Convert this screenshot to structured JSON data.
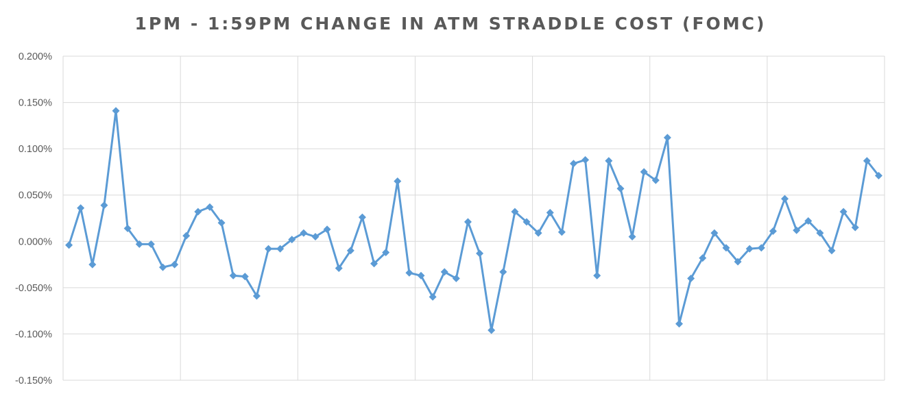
{
  "chart_data": {
    "type": "line",
    "title": "1PM - 1:59PM CHANGE IN ATM STRADDLE COST (FOMC)",
    "xlabel": "",
    "ylabel": "",
    "ylim": [
      -0.15,
      0.2
    ],
    "y_unit": "%",
    "y_ticks": [
      "0.200%",
      "0.150%",
      "0.100%",
      "0.050%",
      "0.000%",
      "-0.050%",
      "-0.100%",
      "-0.150%"
    ],
    "y_tick_values": [
      0.2,
      0.15,
      0.1,
      0.05,
      0.0,
      -0.05,
      -0.1,
      -0.15
    ],
    "x_count": 70,
    "x_gridline_every": 10,
    "grid": true,
    "legend": "none",
    "series": [
      {
        "color": "#5b9bd5",
        "marker": "diamond",
        "values": [
          -0.004,
          0.036,
          -0.025,
          0.039,
          0.141,
          0.014,
          -0.003,
          -0.003,
          -0.028,
          -0.025,
          0.006,
          0.032,
          0.037,
          0.02,
          -0.037,
          -0.038,
          -0.059,
          -0.008,
          -0.008,
          0.002,
          0.009,
          0.005,
          0.013,
          -0.029,
          -0.01,
          0.026,
          -0.024,
          -0.012,
          0.065,
          -0.034,
          -0.037,
          -0.06,
          -0.033,
          -0.04,
          0.021,
          -0.013,
          -0.096,
          -0.033,
          0.032,
          0.021,
          0.009,
          0.031,
          0.01,
          0.084,
          0.088,
          -0.037,
          0.087,
          0.057,
          0.005,
          0.075,
          0.066,
          0.112,
          -0.089,
          -0.04,
          -0.018,
          0.009,
          -0.007,
          -0.022,
          -0.008,
          -0.007,
          0.011,
          0.046,
          0.012,
          0.022,
          0.009,
          -0.01,
          0.032,
          0.015,
          0.087,
          0.071
        ]
      }
    ]
  }
}
